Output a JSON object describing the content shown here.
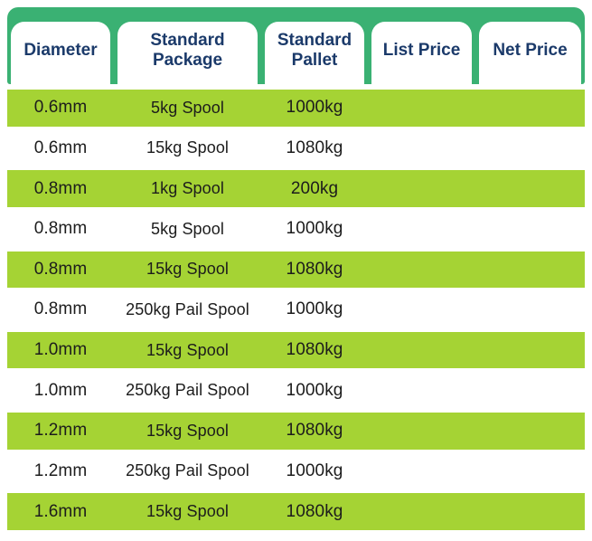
{
  "table": {
    "columns": [
      {
        "label": "Diameter"
      },
      {
        "label": "Standard Package"
      },
      {
        "label": "Standard Pallet"
      },
      {
        "label": "List Price"
      },
      {
        "label": "Net Price"
      }
    ],
    "rows": [
      {
        "diameter": "0.6mm",
        "package": "5kg Spool",
        "pallet": "1000kg",
        "list_price": "",
        "net_price": ""
      },
      {
        "diameter": "0.6mm",
        "package": "15kg Spool",
        "pallet": "1080kg",
        "list_price": "",
        "net_price": ""
      },
      {
        "diameter": "0.8mm",
        "package": "1kg Spool",
        "pallet": "200kg",
        "list_price": "",
        "net_price": ""
      },
      {
        "diameter": "0.8mm",
        "package": "5kg Spool",
        "pallet": "1000kg",
        "list_price": "",
        "net_price": ""
      },
      {
        "diameter": "0.8mm",
        "package": "15kg Spool",
        "pallet": "1080kg",
        "list_price": "",
        "net_price": ""
      },
      {
        "diameter": "0.8mm",
        "package": "250kg Pail Spool",
        "pallet": "1000kg",
        "list_price": "",
        "net_price": ""
      },
      {
        "diameter": "1.0mm",
        "package": "15kg Spool",
        "pallet": "1080kg",
        "list_price": "",
        "net_price": ""
      },
      {
        "diameter": "1.0mm",
        "package": "250kg Pail Spool",
        "pallet": "1000kg",
        "list_price": "",
        "net_price": ""
      },
      {
        "diameter": "1.2mm",
        "package": "15kg Spool",
        "pallet": "1080kg",
        "list_price": "",
        "net_price": ""
      },
      {
        "diameter": "1.2mm",
        "package": "250kg Pail Spool",
        "pallet": "1000kg",
        "list_price": "",
        "net_price": ""
      },
      {
        "diameter": "1.6mm",
        "package": "15kg Spool",
        "pallet": "1080kg",
        "list_price": "",
        "net_price": ""
      }
    ]
  },
  "colors": {
    "header_band_green": "#3ab173",
    "row_stripe_green": "#a5d334",
    "header_text_navy": "#1b3a6a",
    "row_text": "#1c1c1c"
  }
}
